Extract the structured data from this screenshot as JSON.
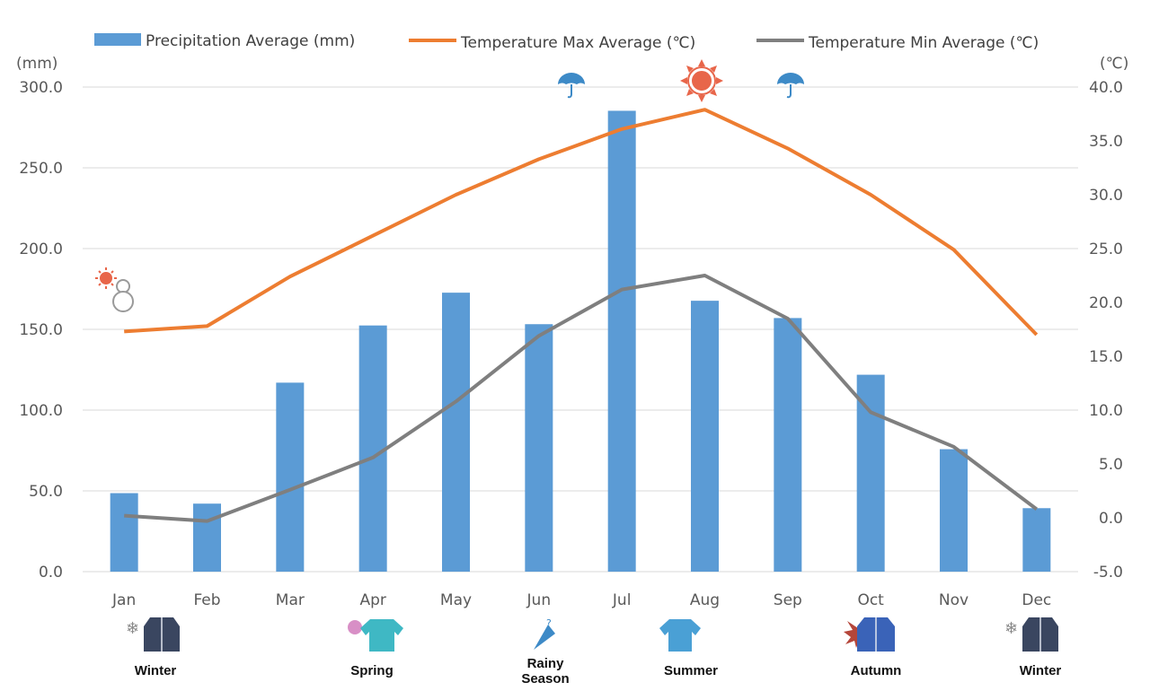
{
  "chart_data": {
    "type": "bar",
    "categories": [
      "Jan",
      "Feb",
      "Mar",
      "Apr",
      "May",
      "Jun",
      "Jul",
      "Aug",
      "Sep",
      "Oct",
      "Nov",
      "Dec"
    ],
    "series": [
      {
        "name": "Precipitation Average (mm)",
        "kind": "bar",
        "axis": "left",
        "color": "#5b9bd5",
        "values": [
          48.6,
          42.1,
          117.0,
          152.4,
          172.7,
          153.2,
          285.3,
          167.7,
          157.0,
          121.9,
          75.8,
          39.3
        ]
      },
      {
        "name": "Temperature Max Average (℃)",
        "kind": "line",
        "axis": "right",
        "color": "#ed7d31",
        "values": [
          17.3,
          17.8,
          22.4,
          26.2,
          30.0,
          33.3,
          36.1,
          37.9,
          34.3,
          30.0,
          24.9,
          17.0
        ]
      },
      {
        "name": "Temperature Min Average (℃)",
        "kind": "line",
        "axis": "right",
        "color": "#7f7f7f",
        "values": [
          0.2,
          -0.3,
          2.6,
          5.6,
          10.8,
          16.9,
          21.2,
          22.5,
          18.5,
          9.8,
          6.6,
          0.8
        ]
      }
    ],
    "left_axis": {
      "label": "(mm)",
      "ylim": [
        0,
        300
      ],
      "ticks": [
        "0.0",
        "50.0",
        "100.0",
        "150.0",
        "200.0",
        "250.0",
        "300.0"
      ]
    },
    "right_axis": {
      "label": "(℃)",
      "ylim": [
        -5,
        40
      ],
      "ticks": [
        "-5.0",
        "0.0",
        "5.0",
        "10.0",
        "15.0",
        "20.0",
        "25.0",
        "30.0",
        "35.0",
        "40.0"
      ]
    },
    "grid": true,
    "legend_position": "top"
  },
  "seasons": [
    {
      "label": "Winter",
      "icon": "winter-coat-snowflake-icon"
    },
    {
      "label": "Spring",
      "icon": "spring-shirt-flower-icon"
    },
    {
      "label": "Rainy Season",
      "icon": "umbrella-icon"
    },
    {
      "label": "Summer",
      "icon": "summer-tshirt-icon"
    },
    {
      "label": "Autumn",
      "icon": "autumn-jacket-leaf-icon"
    },
    {
      "label": "Winter",
      "icon": "winter-coat-snowflake-icon"
    }
  ],
  "weather_icons": [
    "sun-snowman-icon",
    "umbrella-icon",
    "sun-icon",
    "umbrella-icon"
  ],
  "colors": {
    "bar": "#5b9bd5",
    "max_line": "#ed7d31",
    "min_line": "#7f7f7f",
    "grid": "#d9d9d9",
    "text": "#595959"
  }
}
